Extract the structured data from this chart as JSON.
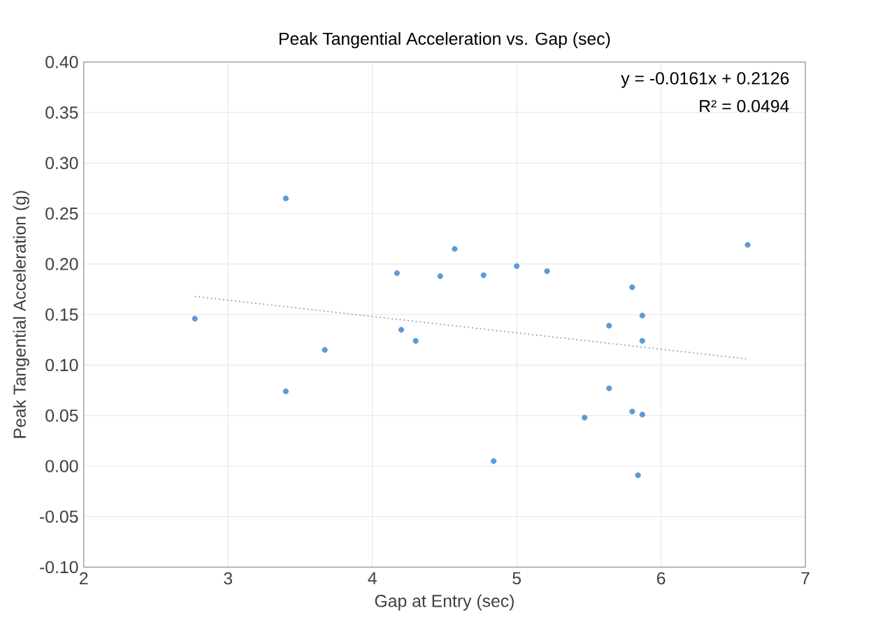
{
  "chart_data": {
    "type": "scatter",
    "title": "Peak Tangential Acceleration vs. Gap (sec)",
    "xlabel": "Gap at Entry (sec)",
    "ylabel": "Peak Tangential Acceleration (g)",
    "xlim": [
      2,
      7
    ],
    "xticks": [
      2,
      3,
      4,
      5,
      6,
      7
    ],
    "ylim": [
      -0.1,
      0.4
    ],
    "yticks": [
      {
        "value": -0.1,
        "label": "-0.10"
      },
      {
        "value": -0.05,
        "label": "-0.05"
      },
      {
        "value": 0,
        "label": "0.00"
      },
      {
        "value": 0.05,
        "label": "0.05"
      },
      {
        "value": 0.1,
        "label": "0.10"
      },
      {
        "value": 0.15,
        "label": "0.15"
      },
      {
        "value": 0.2,
        "label": "0.20"
      },
      {
        "value": 0.25,
        "label": "0.25"
      },
      {
        "value": 0.3,
        "label": "0.30"
      },
      {
        "value": 0.35,
        "label": "0.35"
      },
      {
        "value": 0.4,
        "label": "0.40"
      }
    ],
    "grid": true,
    "annotations": [
      "y = -0.0161x + 0.2126",
      "R² = 0.0494"
    ],
    "series": [
      {
        "color": "#5b9bd5",
        "marker": "circle",
        "x": [
          2.77,
          3.4,
          3.4,
          3.67,
          4.17,
          4.2,
          4.3,
          4.47,
          4.57,
          4.77,
          4.84,
          5.0,
          5.21,
          5.47,
          5.64,
          5.64,
          5.8,
          5.8,
          5.84,
          5.87,
          5.87,
          5.87,
          6.6
        ],
        "values": [
          0.146,
          0.265,
          0.074,
          0.115,
          0.191,
          0.135,
          0.124,
          0.188,
          0.215,
          0.189,
          0.005,
          0.198,
          0.193,
          0.048,
          0.139,
          0.077,
          0.177,
          0.054,
          -0.009,
          0.149,
          0.124,
          0.051,
          0.219
        ]
      },
      {
        "type": "line",
        "color": "#5b9bd5",
        "line_style": "dotted",
        "marker": "none",
        "x": [
          2.77,
          6.6
        ],
        "values": [
          0.168,
          0.106
        ]
      }
    ]
  }
}
